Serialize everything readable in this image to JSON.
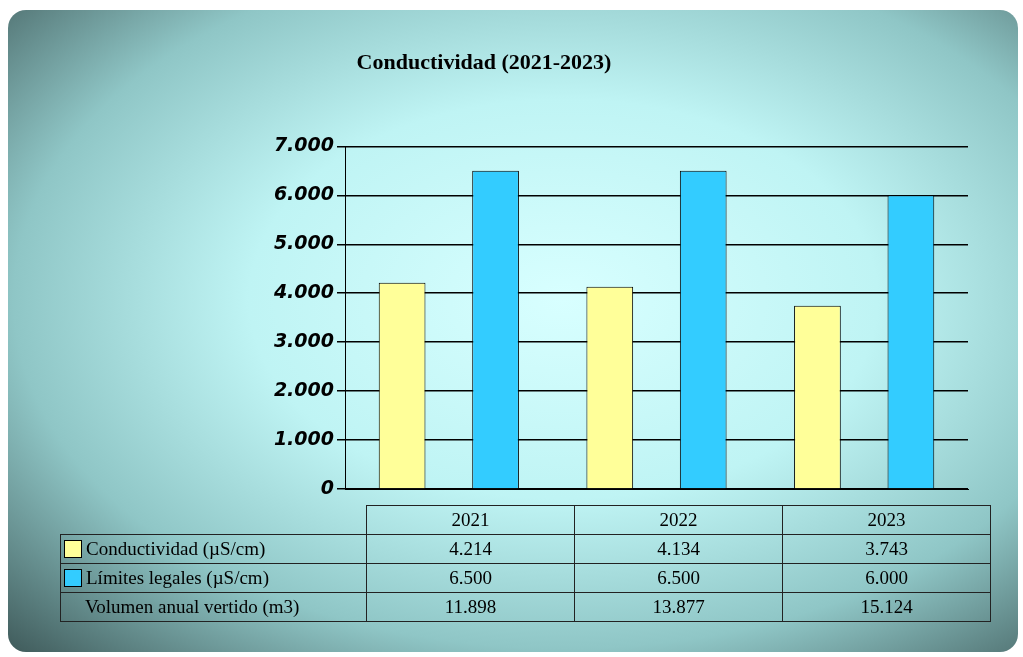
{
  "chart_data": {
    "type": "bar",
    "title": "Conductividad (2021-2023)",
    "categories": [
      "2021",
      "2022",
      "2023"
    ],
    "series": [
      {
        "name": "Conductividad (µS/cm)",
        "color": "#ffff99",
        "values": [
          4214,
          4134,
          3743
        ],
        "value_labels": [
          "4.214",
          "4.134",
          "3.743"
        ]
      },
      {
        "name": "Límites legales (µS/cm)",
        "color": "#33ccff",
        "values": [
          6500,
          6500,
          6000
        ],
        "value_labels": [
          "6.500",
          "6.500",
          "6.000"
        ]
      }
    ],
    "ylim": [
      0,
      7000
    ],
    "yticks": [
      {
        "value": 0,
        "label": "0"
      },
      {
        "value": 1000,
        "label": "1.000"
      },
      {
        "value": 2000,
        "label": "2.000"
      },
      {
        "value": 3000,
        "label": "3.000"
      },
      {
        "value": 4000,
        "label": "4.000"
      },
      {
        "value": 5000,
        "label": "5.000"
      },
      {
        "value": 6000,
        "label": "6.000"
      },
      {
        "value": 7000,
        "label": "7.000"
      }
    ],
    "grid": "y",
    "legend": "bottom left",
    "annotations": [
      "Volumen anual vertido (m3)",
      "11.898",
      "13.877",
      "15.124"
    ]
  }
}
